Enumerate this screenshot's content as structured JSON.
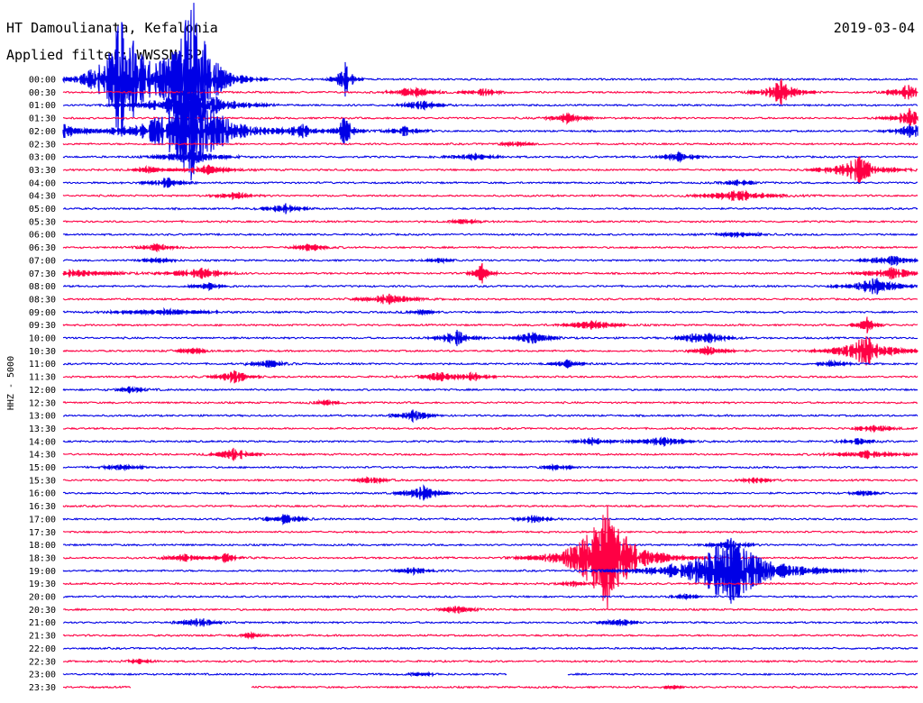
{
  "header": {
    "station": "HT Damoulianata, Kefalonia",
    "date": "2019-03-04",
    "filter": "Applied filter: WWSSN-SP"
  },
  "chart_data": {
    "type": "line",
    "title": "HT Damoulianata, Kefalonia",
    "ylabel": "HHZ - 5000",
    "row_labels": [
      "00:00",
      "00:30",
      "01:00",
      "01:30",
      "02:00",
      "02:30",
      "03:00",
      "03:30",
      "04:00",
      "04:30",
      "05:00",
      "05:30",
      "06:00",
      "06:30",
      "07:00",
      "07:30",
      "08:00",
      "08:30",
      "09:00",
      "09:30",
      "10:00",
      "10:30",
      "11:00",
      "11:30",
      "12:00",
      "12:30",
      "13:00",
      "13:30",
      "14:00",
      "14:30",
      "15:00",
      "15:30",
      "16:00",
      "16:30",
      "17:00",
      "17:30",
      "18:00",
      "18:30",
      "19:00",
      "19:30",
      "20:00",
      "20:30",
      "21:00",
      "21:30",
      "22:00",
      "22:30",
      "23:00",
      "23:30"
    ],
    "colors": {
      "even_rows": "#0000e6",
      "odd_rows": "#ff0044"
    },
    "events": [
      [
        0,
        0.07,
        160,
        0.03
      ],
      [
        0,
        0.15,
        200,
        0.03
      ],
      [
        0,
        0.33,
        45,
        0.01
      ],
      [
        1,
        0.41,
        14,
        0.02
      ],
      [
        1,
        0.49,
        9,
        0.02
      ],
      [
        1,
        0.84,
        30,
        0.02
      ],
      [
        1,
        0.99,
        20,
        0.02
      ],
      [
        2,
        0.15,
        60,
        0.04
      ],
      [
        2,
        0.42,
        12,
        0.02
      ],
      [
        3,
        0.59,
        12,
        0.02
      ],
      [
        3,
        0.99,
        22,
        0.02
      ],
      [
        4,
        0.003,
        16,
        0.02
      ],
      [
        4,
        0.15,
        110,
        0.05
      ],
      [
        4,
        0.28,
        14,
        0.02
      ],
      [
        4,
        0.33,
        40,
        0.01
      ],
      [
        4,
        0.4,
        10,
        0.02
      ],
      [
        4,
        0.995,
        18,
        0.02
      ],
      [
        5,
        0.53,
        6,
        0.02
      ],
      [
        6,
        0.15,
        20,
        0.03
      ],
      [
        6,
        0.48,
        6,
        0.03
      ],
      [
        6,
        0.72,
        10,
        0.02
      ],
      [
        7,
        0.1,
        7,
        0.02
      ],
      [
        7,
        0.17,
        10,
        0.03
      ],
      [
        7,
        0.93,
        30,
        0.03
      ],
      [
        8,
        0.12,
        12,
        0.02
      ],
      [
        8,
        0.79,
        6,
        0.02
      ],
      [
        9,
        0.2,
        8,
        0.02
      ],
      [
        9,
        0.79,
        12,
        0.04
      ],
      [
        10,
        0.26,
        12,
        0.02
      ],
      [
        11,
        0.47,
        5,
        0.02
      ],
      [
        12,
        0.79,
        5,
        0.03
      ],
      [
        13,
        0.11,
        8,
        0.02
      ],
      [
        13,
        0.29,
        8,
        0.02
      ],
      [
        14,
        0.11,
        5,
        0.02
      ],
      [
        14,
        0.44,
        5,
        0.02
      ],
      [
        14,
        0.97,
        12,
        0.03
      ],
      [
        15,
        0.01,
        8,
        0.05
      ],
      [
        15,
        0.16,
        12,
        0.03
      ],
      [
        15,
        0.49,
        25,
        0.01
      ],
      [
        15,
        0.97,
        15,
        0.03
      ],
      [
        16,
        0.17,
        8,
        0.02
      ],
      [
        16,
        0.95,
        20,
        0.03
      ],
      [
        17,
        0.38,
        12,
        0.03
      ],
      [
        18,
        0.12,
        6,
        0.06
      ],
      [
        18,
        0.42,
        5,
        0.02
      ],
      [
        19,
        0.62,
        10,
        0.03
      ],
      [
        19,
        0.94,
        30,
        0.01
      ],
      [
        20,
        0.46,
        18,
        0.02
      ],
      [
        20,
        0.55,
        16,
        0.02
      ],
      [
        20,
        0.74,
        10,
        0.02
      ],
      [
        20,
        0.76,
        10,
        0.02
      ],
      [
        21,
        0.15,
        6,
        0.02
      ],
      [
        21,
        0.76,
        14,
        0.02
      ],
      [
        21,
        0.94,
        40,
        0.03
      ],
      [
        22,
        0.24,
        8,
        0.02
      ],
      [
        22,
        0.59,
        8,
        0.02
      ],
      [
        22,
        0.9,
        6,
        0.02
      ],
      [
        23,
        0.2,
        14,
        0.02
      ],
      [
        23,
        0.44,
        10,
        0.02
      ],
      [
        23,
        0.48,
        10,
        0.02
      ],
      [
        24,
        0.08,
        6,
        0.02
      ],
      [
        25,
        0.31,
        4,
        0.02
      ],
      [
        26,
        0.41,
        12,
        0.02
      ],
      [
        27,
        0.95,
        10,
        0.02
      ],
      [
        28,
        0.62,
        8,
        0.02
      ],
      [
        28,
        0.7,
        10,
        0.03
      ],
      [
        28,
        0.93,
        6,
        0.02
      ],
      [
        29,
        0.2,
        16,
        0.02
      ],
      [
        29,
        0.94,
        8,
        0.04
      ],
      [
        30,
        0.07,
        8,
        0.02
      ],
      [
        30,
        0.58,
        6,
        0.02
      ],
      [
        31,
        0.36,
        8,
        0.02
      ],
      [
        31,
        0.81,
        6,
        0.02
      ],
      [
        32,
        0.42,
        18,
        0.02
      ],
      [
        32,
        0.94,
        5,
        0.02
      ],
      [
        34,
        0.26,
        12,
        0.02
      ],
      [
        34,
        0.55,
        8,
        0.02
      ],
      [
        36,
        0.78,
        12,
        0.02
      ],
      [
        37,
        0.14,
        8,
        0.02
      ],
      [
        37,
        0.19,
        8,
        0.02
      ],
      [
        37,
        0.635,
        130,
        0.04
      ],
      [
        38,
        0.41,
        8,
        0.02
      ],
      [
        38,
        0.78,
        80,
        0.06
      ],
      [
        39,
        0.6,
        6,
        0.02
      ],
      [
        40,
        0.73,
        5,
        0.02
      ],
      [
        41,
        0.46,
        8,
        0.02
      ],
      [
        42,
        0.16,
        12,
        0.02
      ],
      [
        42,
        0.65,
        8,
        0.02
      ],
      [
        43,
        0.22,
        4,
        0.02
      ],
      [
        45,
        0.09,
        4,
        0.02
      ],
      [
        46,
        0.42,
        4,
        0.02
      ],
      [
        47,
        0.715,
        6,
        0.01
      ]
    ],
    "gaps": [
      [
        46,
        0.52,
        0.59
      ],
      [
        47,
        0.08,
        0.22
      ]
    ]
  }
}
